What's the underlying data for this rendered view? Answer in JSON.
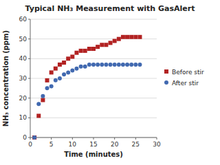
{
  "chart_data": {
    "type": "scatter",
    "title": "Typical NH₃ Measurement with GasAlert",
    "xlabel": "Time (minutes)",
    "ylabel": "NH₃ concentration (ppm)",
    "x": [
      1,
      2,
      3,
      4,
      5,
      6,
      7,
      8,
      9,
      10,
      11,
      12,
      13,
      14,
      15,
      16,
      17,
      18,
      19,
      20,
      21,
      22,
      23,
      24,
      25,
      26
    ],
    "series": [
      {
        "name": "Before stir",
        "color": "#b22222",
        "marker": "square",
        "values": [
          0,
          11,
          19,
          29,
          33,
          35,
          37,
          38,
          40,
          41,
          43,
          44,
          44,
          45,
          45,
          46,
          47,
          47,
          48,
          49,
          50,
          51,
          51,
          51,
          51,
          51
        ]
      },
      {
        "name": "After stir",
        "color": "#4169b0",
        "marker": "circle",
        "values": [
          0,
          17,
          21,
          25,
          26,
          29,
          30,
          32,
          33,
          34,
          35,
          36,
          36,
          37,
          37,
          37,
          37,
          37,
          37,
          37,
          37,
          37,
          37,
          37,
          37,
          37
        ]
      }
    ],
    "xlim": [
      0,
      30
    ],
    "ylim": [
      0,
      60
    ],
    "xticks": [
      0,
      5,
      10,
      15,
      20,
      25,
      30
    ],
    "yticks": [
      0,
      10,
      20,
      30,
      40,
      50,
      60
    ],
    "grid": "y",
    "legend": "right"
  }
}
